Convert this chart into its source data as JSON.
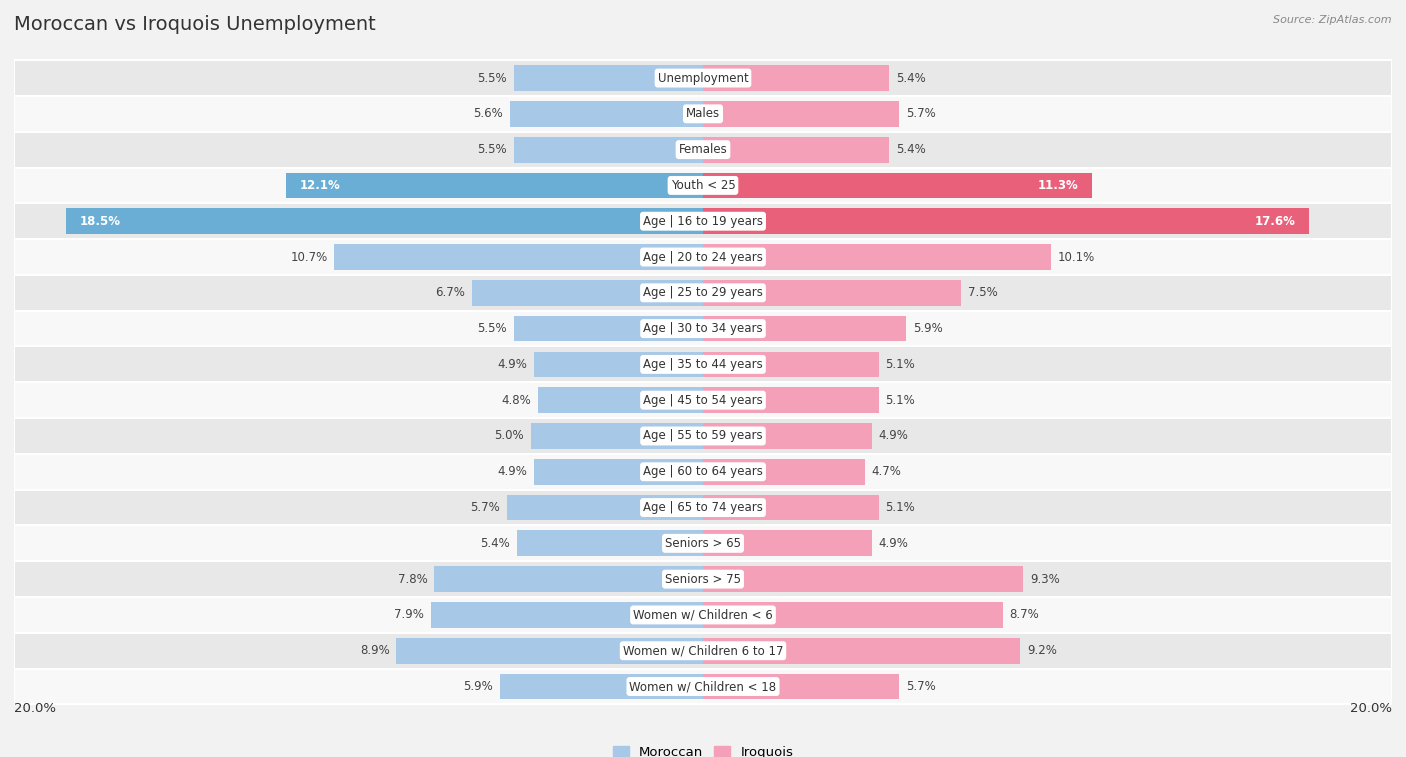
{
  "title": "Moroccan vs Iroquois Unemployment",
  "source": "Source: ZipAtlas.com",
  "categories": [
    "Unemployment",
    "Males",
    "Females",
    "Youth < 25",
    "Age | 16 to 19 years",
    "Age | 20 to 24 years",
    "Age | 25 to 29 years",
    "Age | 30 to 34 years",
    "Age | 35 to 44 years",
    "Age | 45 to 54 years",
    "Age | 55 to 59 years",
    "Age | 60 to 64 years",
    "Age | 65 to 74 years",
    "Seniors > 65",
    "Seniors > 75",
    "Women w/ Children < 6",
    "Women w/ Children 6 to 17",
    "Women w/ Children < 18"
  ],
  "moroccan": [
    5.5,
    5.6,
    5.5,
    12.1,
    18.5,
    10.7,
    6.7,
    5.5,
    4.9,
    4.8,
    5.0,
    4.9,
    5.7,
    5.4,
    7.8,
    7.9,
    8.9,
    5.9
  ],
  "iroquois": [
    5.4,
    5.7,
    5.4,
    11.3,
    17.6,
    10.1,
    7.5,
    5.9,
    5.1,
    5.1,
    4.9,
    4.7,
    5.1,
    4.9,
    9.3,
    8.7,
    9.2,
    5.7
  ],
  "moroccan_color_normal": "#a8c8e8",
  "moroccan_color_highlight": "#6aaed6",
  "iroquois_color_normal": "#f4a0b8",
  "iroquois_color_highlight": "#e8607a",
  "background_color": "#f2f2f2",
  "row_color_a": "#e8e8e8",
  "row_color_b": "#f8f8f8",
  "divider_color": "#ffffff",
  "label_bg_color": "#ffffff",
  "xlim": 20.0,
  "bar_height": 0.72,
  "value_fontsize": 8.5,
  "label_fontsize": 8.5,
  "title_fontsize": 14
}
